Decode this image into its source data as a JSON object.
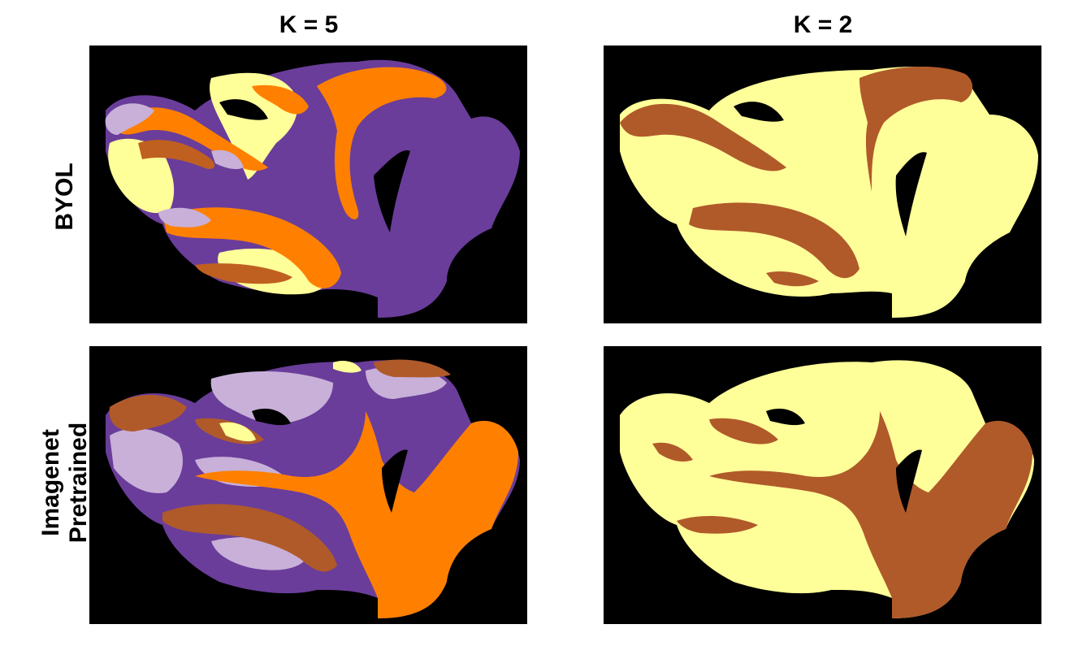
{
  "columns": [
    {
      "title": "K = 5"
    },
    {
      "title": "K = 2"
    }
  ],
  "rows": [
    {
      "label_lines": [
        "BYOL"
      ]
    },
    {
      "label_lines": [
        "Imagenet",
        "Pretrained"
      ]
    }
  ],
  "colors": {
    "background": "#000000",
    "light_yellow": "#FFFF99",
    "orange": "#FF8000",
    "dark_orange": "#C06020",
    "brown": "#B05A2A",
    "lavender": "#C8B0D8",
    "purple": "#6A3D9A"
  }
}
